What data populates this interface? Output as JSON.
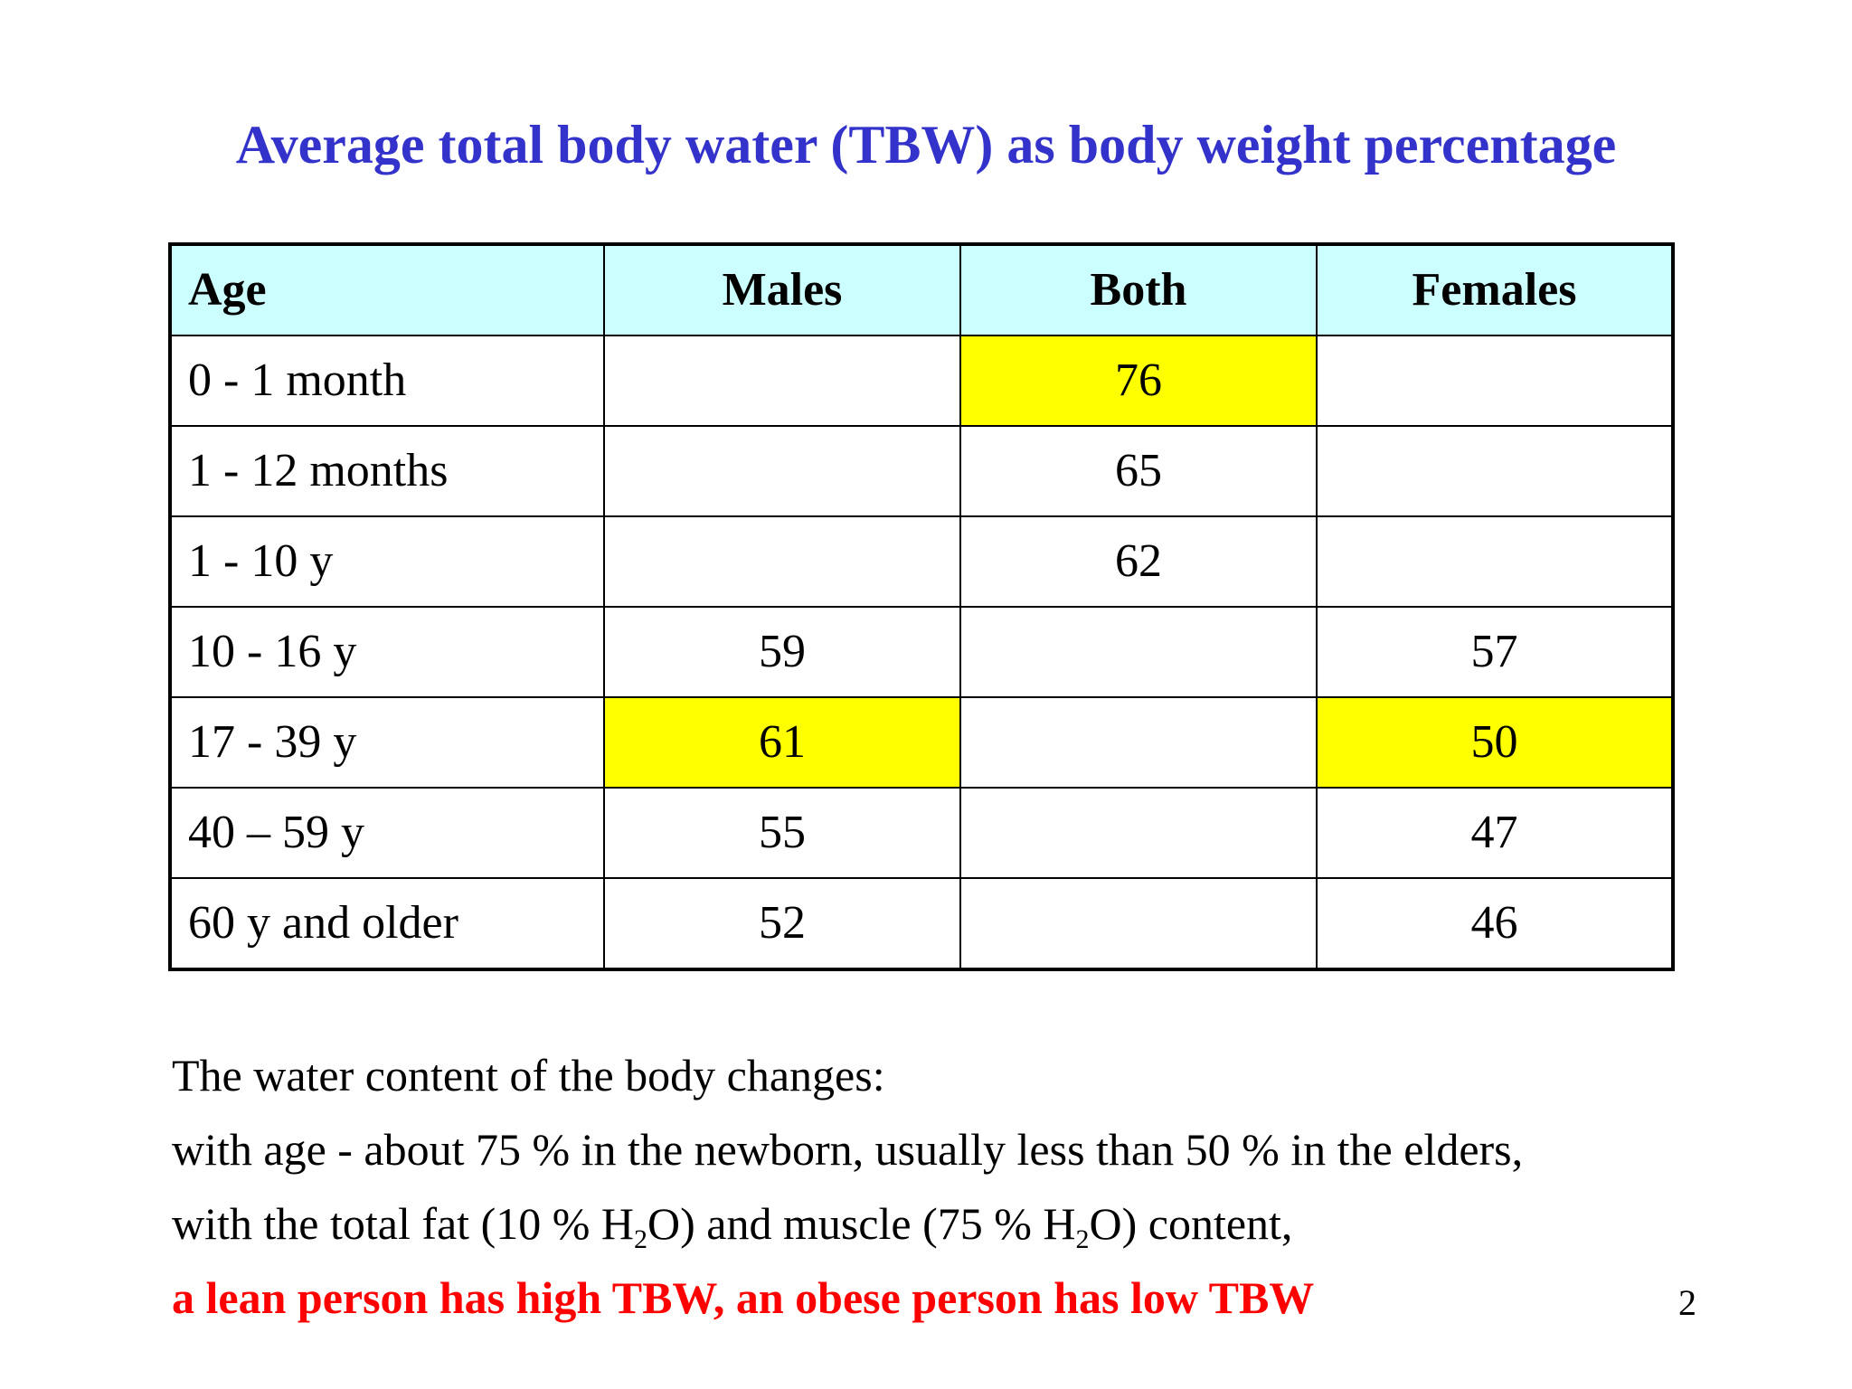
{
  "slide": {
    "title": "Average total body water (TBW) as body weight percentage",
    "page_number": "2"
  },
  "colors": {
    "title": "#3333cc",
    "header_background": "#ccffff",
    "highlight": "#ffff00",
    "emphasis_text": "#ff0000",
    "body_text": "#000000"
  },
  "table": {
    "headers": [
      "Age",
      "Males",
      "Both",
      "Females"
    ],
    "rows": [
      {
        "age": "0 - 1 month",
        "males": "",
        "both": "76",
        "females": "",
        "highlight": [
          "both"
        ]
      },
      {
        "age": "1 - 12 months",
        "males": "",
        "both": "65",
        "females": "",
        "highlight": []
      },
      {
        "age": "1 - 10 y",
        "males": "",
        "both": "62",
        "females": "",
        "highlight": []
      },
      {
        "age": "10 - 16 y",
        "males": "59",
        "both": "",
        "females": "57",
        "highlight": []
      },
      {
        "age": "17 - 39 y",
        "males": "61",
        "both": "",
        "females": "50",
        "highlight": [
          "males",
          "females"
        ]
      },
      {
        "age": "40 – 59 y",
        "males": "55",
        "both": "",
        "females": "47",
        "highlight": []
      },
      {
        "age": "60 y and older",
        "males": "52",
        "both": "",
        "females": "46",
        "highlight": []
      }
    ]
  },
  "notes": {
    "line1": "The water content of the body changes:",
    "line2": "with age - about 75 % in the newborn, usually less than 50 % in the elders,",
    "line3": {
      "part1": "with the total fat (10 % H",
      "sub1": "2",
      "part2": "O) and muscle (75 % H",
      "sub2": "2",
      "part3": "O) content,"
    },
    "line4": "a lean person has high TBW, an obese person has low TBW"
  }
}
